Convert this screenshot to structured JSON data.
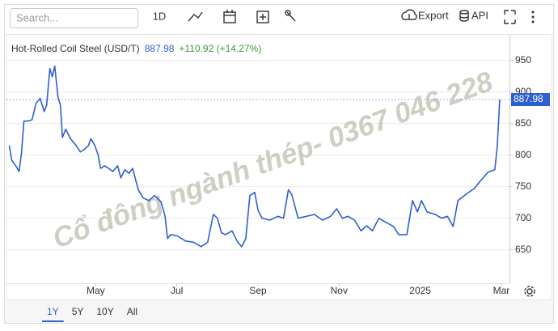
{
  "toolbar": {
    "search": "Search...",
    "interval": "1D",
    "export": "Export",
    "api": "API"
  },
  "ranges": [
    "1Y",
    "5Y",
    "10Y",
    "All"
  ],
  "chart_data": {
    "type": "line",
    "title": "Hot-Rolled Coil Steel (USD/T)",
    "change": "+110.92 (+14.27%)",
    "watermark": "Cổ đông ngành thép- 0367 046 228",
    "color": "#2f5fd0",
    "x": [
      -1.13,
      -1.07,
      -0.97,
      -0.89,
      -0.83,
      -0.77,
      -0.67,
      -0.57,
      -0.47,
      -0.37,
      -0.27,
      -0.21,
      -0.13,
      -0.07,
      -0.01,
      0.07,
      0.13,
      0.18,
      0.26,
      0.38,
      0.52,
      0.62,
      0.72,
      0.82,
      0.88,
      0.98,
      1.06,
      1.12,
      1.22,
      1.32,
      1.42,
      1.54,
      1.62,
      1.72,
      1.82,
      1.91,
      2.05,
      2.17,
      2.31,
      2.45,
      2.61,
      2.71,
      2.77,
      2.85,
      3.01,
      3.21,
      3.41,
      3.6,
      3.76,
      3.9,
      4.0,
      4.1,
      4.2,
      4.36,
      4.5,
      4.6,
      4.7,
      4.8,
      4.92,
      5.0,
      5.1,
      5.29,
      5.49,
      5.63,
      5.75,
      5.83,
      5.99,
      6.19,
      6.39,
      6.59,
      6.79,
      6.94,
      7.08,
      7.22,
      7.38,
      7.54,
      7.68,
      7.82,
      7.98,
      8.14,
      8.34,
      8.47,
      8.67,
      8.81,
      8.93,
      9.03,
      9.17,
      9.37,
      9.53,
      9.67,
      9.81,
      9.93,
      10.13,
      10.33,
      10.47,
      10.67,
      10.84,
      10.9,
      10.96
    ],
    "values": [
      815,
      792,
      783,
      774,
      803,
      854,
      854,
      856,
      882,
      890,
      869,
      879,
      937,
      924,
      941,
      892,
      879,
      828,
      841,
      826,
      815,
      805,
      809,
      815,
      826,
      815,
      800,
      779,
      783,
      779,
      774,
      783,
      764,
      777,
      771,
      779,
      745,
      732,
      728,
      736,
      726,
      703,
      668,
      674,
      672,
      664,
      662,
      655,
      662,
      706,
      700,
      677,
      674,
      680,
      662,
      655,
      668,
      736,
      741,
      713,
      700,
      697,
      703,
      700,
      745,
      738,
      700,
      703,
      706,
      697,
      703,
      715,
      700,
      703,
      697,
      680,
      688,
      680,
      700,
      694,
      687,
      674,
      674,
      728,
      710,
      728,
      710,
      706,
      700,
      703,
      687,
      728,
      738,
      747,
      758,
      773,
      777,
      815,
      887.98
    ],
    "xlim": [
      -1.2,
      11.2
    ],
    "xticks": [
      {
        "value": 1,
        "label": "May"
      },
      {
        "value": 3,
        "label": "Jul"
      },
      {
        "value": 5,
        "label": "Sep"
      },
      {
        "value": 7,
        "label": "Nov"
      },
      {
        "value": 9,
        "label": "2025"
      },
      {
        "value": 11,
        "label": "Mar"
      }
    ],
    "ylim": [
      597,
      988
    ],
    "yticks": [
      650,
      700,
      750,
      800,
      850,
      900,
      950
    ],
    "grid": true
  }
}
